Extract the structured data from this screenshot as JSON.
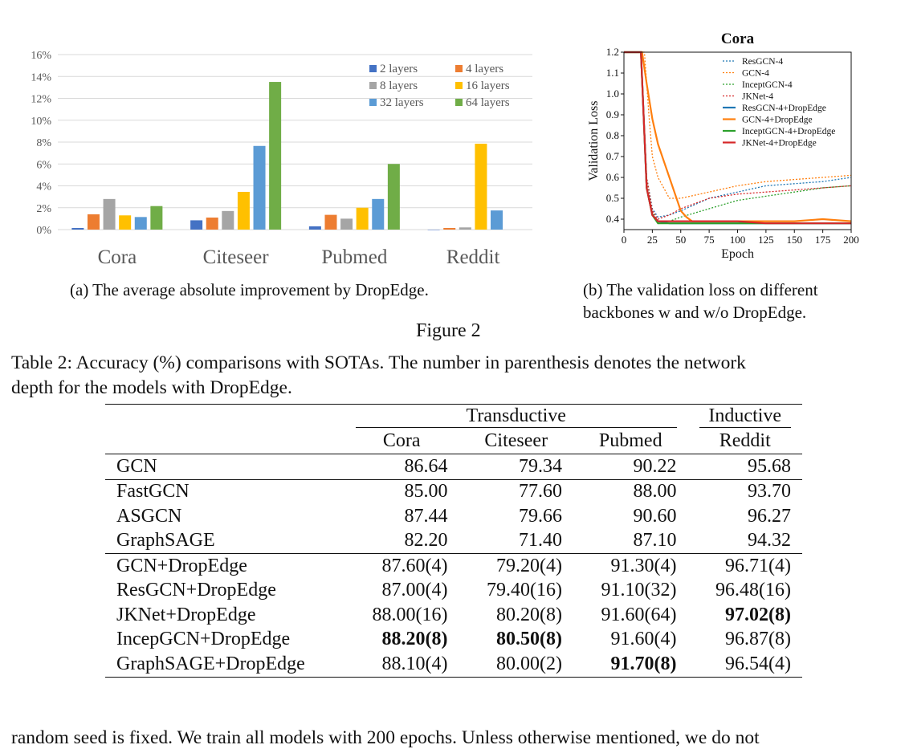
{
  "figure": {
    "label": "Figure 2",
    "caption_a": "(a) The average absolute improvement by DropEdge.",
    "caption_b_line1": "(b) The validation loss on different",
    "caption_b_line2": "backbones w and w/o DropEdge."
  },
  "chart_data": [
    {
      "type": "bar",
      "categories": [
        "Cora",
        "Citeseer",
        "Pubmed",
        "Reddit"
      ],
      "yticks": [
        "0%",
        "2%",
        "4%",
        "6%",
        "8%",
        "10%",
        "12%",
        "14%",
        "16%"
      ],
      "ylim": [
        0,
        16
      ],
      "grid": true,
      "legend_position": "top-right",
      "series": [
        {
          "name": "2 layers",
          "color": "#4472C4",
          "values": [
            0.15,
            0.85,
            0.3,
            0.0
          ]
        },
        {
          "name": "4 layers",
          "color": "#ED7D31",
          "values": [
            1.4,
            1.1,
            1.35,
            0.15
          ]
        },
        {
          "name": "8 layers",
          "color": "#A5A5A5",
          "values": [
            2.8,
            1.7,
            1.0,
            0.2
          ]
        },
        {
          "name": "16 layers",
          "color": "#FFC000",
          "values": [
            1.3,
            3.45,
            2.0,
            7.85
          ]
        },
        {
          "name": "32 layers",
          "color": "#5B9BD5",
          "values": [
            1.15,
            7.65,
            2.8,
            1.75
          ]
        },
        {
          "name": "64 layers",
          "color": "#70AD47",
          "values": [
            2.15,
            13.5,
            6.0,
            null
          ]
        }
      ]
    },
    {
      "type": "line",
      "title": "Cora",
      "xlabel": "Epoch",
      "ylabel": "Validation Loss",
      "xlim": [
        0,
        200
      ],
      "ylim": [
        0.35,
        1.2
      ],
      "xticks": [
        "0",
        "25",
        "50",
        "75",
        "100",
        "125",
        "150",
        "175",
        "200"
      ],
      "yticks": [
        "0.4",
        "0.5",
        "0.6",
        "0.7",
        "0.8",
        "0.9",
        "1.0",
        "1.1",
        "1.2"
      ],
      "legend_position": "top-right",
      "series": [
        {
          "name": "ResGCN-4",
          "color": "#1f77b4",
          "dashed": true,
          "x": [
            0,
            15,
            20,
            25,
            30,
            40,
            50,
            75,
            100,
            125,
            150,
            175,
            200
          ],
          "y": [
            1.2,
            1.2,
            0.6,
            0.45,
            0.41,
            0.42,
            0.44,
            0.5,
            0.53,
            0.56,
            0.57,
            0.58,
            0.6
          ]
        },
        {
          "name": "GCN-4",
          "color": "#ff7f0e",
          "dashed": true,
          "x": [
            0,
            18,
            22,
            25,
            30,
            35,
            40,
            50,
            75,
            100,
            125,
            150,
            175,
            200
          ],
          "y": [
            1.2,
            1.2,
            0.9,
            0.7,
            0.6,
            0.55,
            0.5,
            0.5,
            0.53,
            0.56,
            0.58,
            0.59,
            0.6,
            0.61
          ]
        },
        {
          "name": "InceptGCN-4",
          "color": "#2ca02c",
          "dashed": true,
          "x": [
            0,
            15,
            20,
            25,
            30,
            40,
            50,
            75,
            100,
            125,
            150,
            175,
            200
          ],
          "y": [
            1.2,
            1.2,
            0.6,
            0.43,
            0.39,
            0.39,
            0.41,
            0.45,
            0.49,
            0.51,
            0.53,
            0.55,
            0.56
          ]
        },
        {
          "name": "JKNet-4",
          "color": "#d62728",
          "dashed": true,
          "x": [
            0,
            15,
            20,
            25,
            30,
            40,
            50,
            75,
            100,
            125,
            150,
            175,
            200
          ],
          "y": [
            1.2,
            1.2,
            0.6,
            0.44,
            0.4,
            0.42,
            0.45,
            0.5,
            0.52,
            0.53,
            0.54,
            0.55,
            0.56
          ]
        },
        {
          "name": "ResGCN-4+DropEdge",
          "color": "#1f77b4",
          "dashed": false,
          "x": [
            0,
            15,
            20,
            25,
            30,
            40,
            50,
            75,
            100,
            125,
            150,
            175,
            200
          ],
          "y": [
            1.2,
            1.2,
            0.55,
            0.42,
            0.39,
            0.38,
            0.38,
            0.38,
            0.38,
            0.38,
            0.38,
            0.38,
            0.38
          ]
        },
        {
          "name": "GCN-4+DropEdge",
          "color": "#ff7f0e",
          "dashed": false,
          "x": [
            0,
            16,
            20,
            25,
            30,
            35,
            40,
            45,
            50,
            55,
            60,
            75,
            100,
            125,
            150,
            175,
            200
          ],
          "y": [
            1.2,
            1.2,
            1.05,
            0.88,
            0.76,
            0.68,
            0.6,
            0.52,
            0.44,
            0.41,
            0.39,
            0.39,
            0.39,
            0.39,
            0.39,
            0.4,
            0.39
          ]
        },
        {
          "name": "InceptGCN-4+DropEdge",
          "color": "#2ca02c",
          "dashed": false,
          "x": [
            0,
            15,
            20,
            25,
            30,
            40,
            50,
            75,
            100,
            125,
            150,
            175,
            200
          ],
          "y": [
            1.2,
            1.2,
            0.55,
            0.42,
            0.38,
            0.38,
            0.38,
            0.38,
            0.38,
            0.38,
            0.38,
            0.38,
            0.38
          ]
        },
        {
          "name": "JKNet-4+DropEdge",
          "color": "#d62728",
          "dashed": false,
          "x": [
            0,
            15,
            20,
            25,
            30,
            40,
            50,
            75,
            100,
            125,
            150,
            175,
            200
          ],
          "y": [
            1.2,
            1.2,
            0.55,
            0.42,
            0.39,
            0.39,
            0.39,
            0.39,
            0.39,
            0.38,
            0.38,
            0.38,
            0.38
          ]
        }
      ]
    }
  ],
  "table": {
    "caption_line1": "Table 2: Accuracy (%) comparisons with SOTAs. The number in parenthesis denotes the network",
    "caption_line2": "depth for the models with DropEdge.",
    "group_transductive": "Transductive",
    "group_inductive": "Inductive",
    "columns": [
      "Cora",
      "Citeseer",
      "Pubmed",
      "Reddit"
    ],
    "rows": [
      {
        "name": "GCN",
        "values": [
          "86.64",
          "79.34",
          "90.22",
          "95.68"
        ]
      },
      {
        "name": "FastGCN",
        "values": [
          "85.00",
          "77.60",
          "88.00",
          "93.70"
        ]
      },
      {
        "name": "ASGCN",
        "values": [
          "87.44",
          "79.66",
          "90.60",
          "96.27"
        ]
      },
      {
        "name": "GraphSAGE",
        "values": [
          "82.20",
          "71.40",
          "87.10",
          "94.32"
        ]
      },
      {
        "name": "GCN+DropEdge",
        "values": [
          "87.60(4)",
          "79.20(4)",
          "91.30(4)",
          "96.71(4)"
        ]
      },
      {
        "name": "ResGCN+DropEdge",
        "values": [
          "87.00(4)",
          "79.40(16)",
          "91.10(32)",
          "96.48(16)"
        ]
      },
      {
        "name": "JKNet+DropEdge",
        "values": [
          "88.00(16)",
          "80.20(8)",
          "91.60(64)",
          "97.02(8)"
        ]
      },
      {
        "name": "IncepGCN+DropEdge",
        "values": [
          "88.20(8)",
          "80.50(8)",
          "91.60(4)",
          "96.87(8)"
        ]
      },
      {
        "name": "GraphSAGE+DropEdge",
        "values": [
          "88.10(4)",
          "80.00(2)",
          "91.70(8)",
          "96.54(4)"
        ]
      }
    ]
  },
  "body_text": "random seed is fixed. We train all models with 200 epochs. Unless otherwise mentioned, we do not"
}
